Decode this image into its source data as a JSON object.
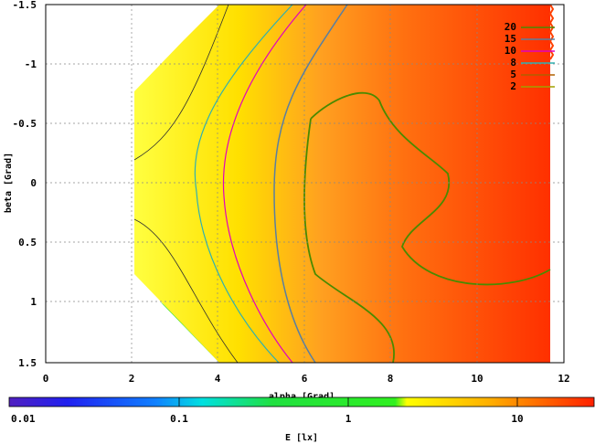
{
  "chart_data": {
    "type": "heatmap",
    "title": "",
    "xlabel": "alpha [Grad]",
    "ylabel": "beta [Grad]",
    "xlim": [
      0,
      12
    ],
    "ylim": [
      1.5,
      -1.5
    ],
    "xticks": [
      "0",
      "2",
      "4",
      "6",
      "8",
      "10",
      "12"
    ],
    "yticks": [
      "-1.5",
      "-1",
      "-0.5",
      "0",
      "0.5",
      "1",
      "1.5"
    ],
    "grid": true,
    "legend_position": "top-right",
    "contour_levels": [
      {
        "label": "20",
        "color": "#4a8a00"
      },
      {
        "label": "15",
        "color": "#5a7fa0"
      },
      {
        "label": "10",
        "color": "#e000c0"
      },
      {
        "label": "8",
        "color": "#30b0b0"
      },
      {
        "label": "5",
        "color": "#b06000"
      },
      {
        "label": "2",
        "color": "#a0a000"
      }
    ],
    "colorbar": {
      "label": "E [lx]",
      "scale": "log",
      "range": [
        0.01,
        30
      ],
      "ticks": [
        "0.01",
        "0.1",
        "1",
        "10"
      ]
    }
  }
}
